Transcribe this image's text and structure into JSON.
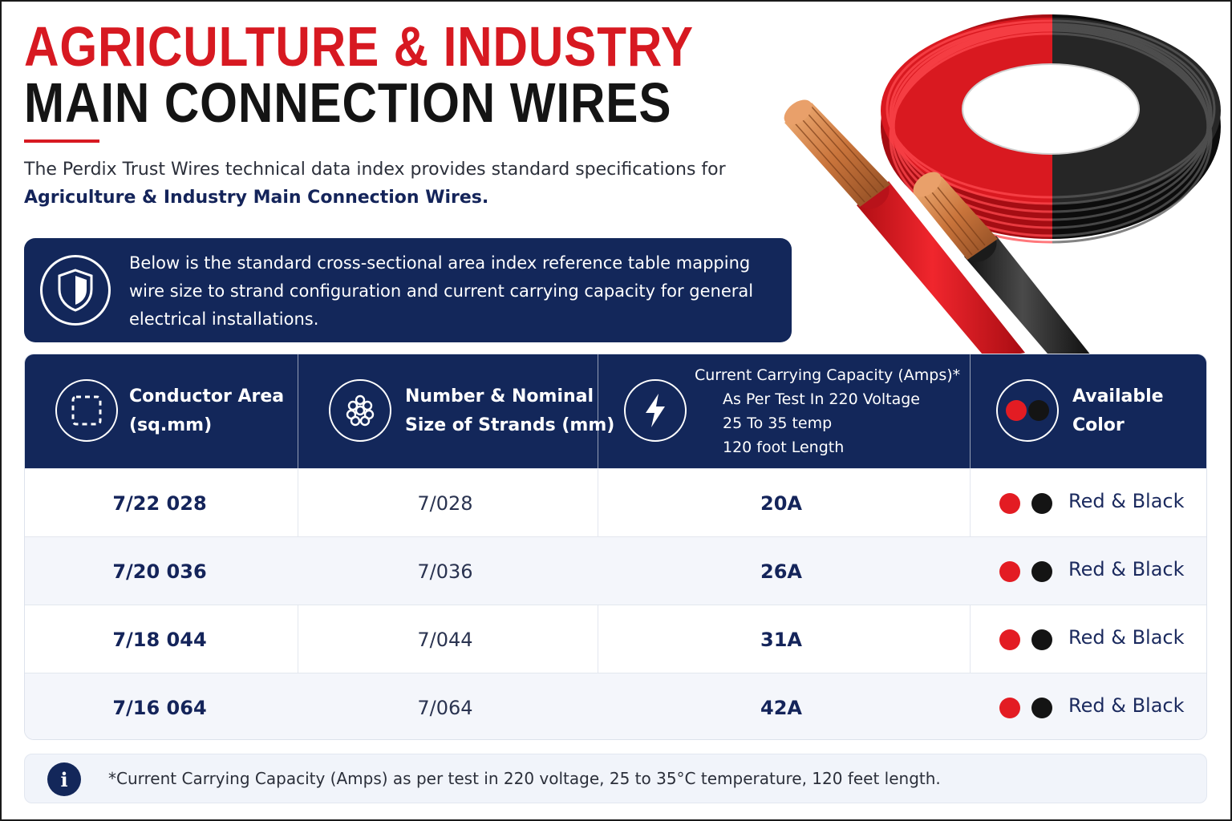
{
  "title": {
    "line1": "AGRICULTURE & INDUSTRY",
    "line2": "MAIN CONNECTION WIRES"
  },
  "intro": {
    "line1": "The Perdix Trust Wires technical data index provides standard specifications for",
    "line2": "Agriculture & Industry Main Connection Wires."
  },
  "banner": {
    "icon": "shield-icon",
    "text": "Below is the standard cross-sectional area index reference table mapping wire size to strand configuration and current carrying capacity for general electrical installations."
  },
  "product_image": {
    "description_icon": "red-black-wire-coil-image"
  },
  "table": {
    "headers": [
      {
        "icon": "dashed-square-icon",
        "line1": "Conductor Area",
        "line2": "(sq.mm)"
      },
      {
        "icon": "wire-strands-icon",
        "line1": "Number & Nominal",
        "line2": "Size of Strands (mm)"
      },
      {
        "icon": "lightning-bolt-icon",
        "line1": "Current Carrying Capacity (Amps)*",
        "line2": "As Per Test In 220 Voltage",
        "line3": "25 To 35 temp",
        "line4": "120 foot Length"
      },
      {
        "icon": "red-black-dots-icon",
        "line1": "Available",
        "line2": "Color"
      }
    ],
    "rows": [
      {
        "area": "7/22 028",
        "strands": "7/028",
        "amps": "20A",
        "color": "Red & Black"
      },
      {
        "area": "7/20 036",
        "strands": "7/036",
        "amps": "26A",
        "color": "Red & Black"
      },
      {
        "area": "7/18 044",
        "strands": "7/044",
        "amps": "31A",
        "color": "Red & Black"
      },
      {
        "area": "7/16 064",
        "strands": "7/064",
        "amps": "42A",
        "color": "Red & Black"
      }
    ]
  },
  "colors": {
    "red": "#e31c23",
    "black": "#141414",
    "navy": "#13275a"
  },
  "footnote": {
    "icon": "info-icon",
    "icon_glyph": "i",
    "text": "*Current Carrying Capacity (Amps) as per test in 220 voltage, 25 to 35°C temperature, 120 feet length."
  }
}
